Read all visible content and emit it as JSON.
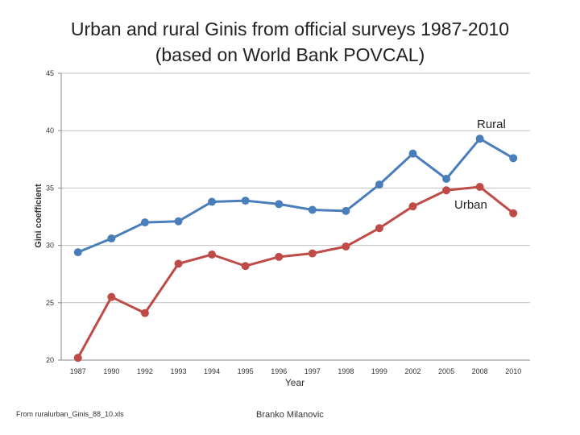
{
  "chart_data": {
    "type": "line",
    "title_line1": "Urban and rural Ginis from official surveys 1987-2010",
    "title_line2": "(based on World Bank POVCAL)",
    "xlabel": "Year",
    "ylabel": "Gini coefficient",
    "ylim": [
      20,
      45
    ],
    "yticks": [
      20,
      25,
      30,
      35,
      40,
      45
    ],
    "categories": [
      "1987",
      "1990",
      "1992",
      "1993",
      "1994",
      "1995",
      "1996",
      "1997",
      "1998",
      "1999",
      "2002",
      "2005",
      "2008",
      "2010"
    ],
    "series": [
      {
        "name": "Rural",
        "color": "#4a7ebb",
        "values": [
          29.4,
          30.6,
          32.0,
          32.1,
          33.8,
          33.9,
          33.6,
          33.1,
          33.0,
          35.3,
          38.0,
          35.8,
          39.3,
          37.6
        ]
      },
      {
        "name": "Urban",
        "color": "#be4b48",
        "values": [
          20.2,
          25.5,
          24.1,
          28.4,
          29.2,
          28.2,
          29.0,
          29.3,
          29.9,
          31.5,
          33.4,
          34.8,
          35.1,
          32.8
        ]
      }
    ],
    "grid": true
  },
  "footer": {
    "source": "From ruralurban_Ginis_88_10.xls",
    "author": "Branko Milanovic"
  }
}
